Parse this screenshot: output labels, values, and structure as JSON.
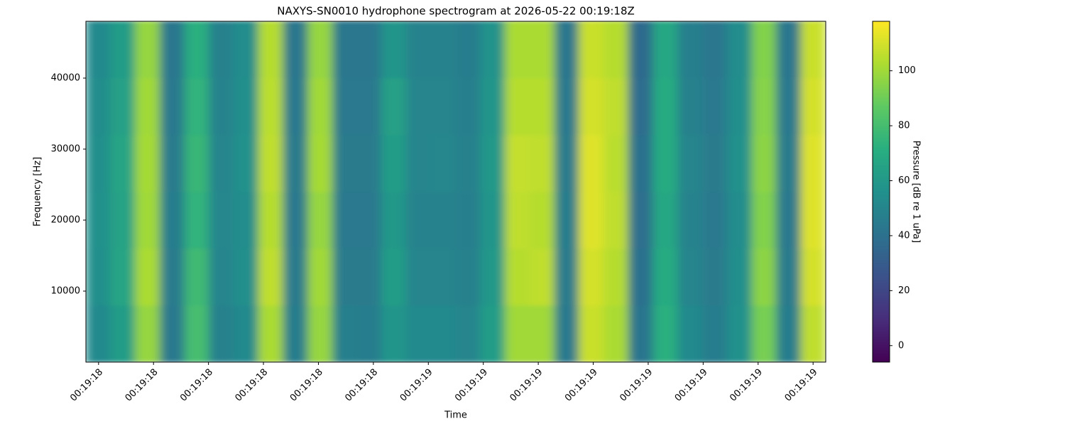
{
  "chart_data": {
    "type": "heatmap",
    "title": "NAXYS-SN0010 hydrophone spectrogram at 2026-05-22 00:19:18Z",
    "x_label": "Time",
    "y_label": "Frequency [Hz]",
    "colorbar_label": "Pressure [dB re 1 uPa]",
    "colormap": "viridis",
    "x_bins": [
      1158.377,
      1158.422,
      1158.467,
      1158.512,
      1158.557,
      1158.601,
      1158.646,
      1158.691,
      1158.736,
      1158.781,
      1158.826,
      1158.871,
      1158.915,
      1158.96,
      1159.005,
      1159.05,
      1159.095,
      1159.14,
      1159.185,
      1159.23,
      1159.274,
      1159.319,
      1159.364,
      1159.409,
      1159.454,
      1159.499,
      1159.544,
      1159.589,
      1159.633,
      1159.678,
      1159.723
    ],
    "y_bins": [
      0,
      8000,
      16000,
      24000,
      32000,
      40000,
      48000
    ],
    "values": [
      [
        52,
        62,
        98,
        44,
        80,
        48,
        52,
        102,
        46,
        98,
        47,
        46,
        58,
        52,
        52,
        50,
        62,
        100,
        100,
        44,
        108,
        102,
        42,
        72,
        52,
        46,
        56,
        92,
        46,
        106
      ],
      [
        55,
        66,
        102,
        45,
        78,
        50,
        55,
        106,
        45,
        100,
        45,
        45,
        62,
        50,
        50,
        48,
        60,
        104,
        106,
        45,
        110,
        104,
        40,
        70,
        50,
        45,
        55,
        96,
        45,
        110
      ],
      [
        56,
        65,
        100,
        46,
        74,
        51,
        54,
        104,
        44,
        98,
        44,
        44,
        60,
        49,
        49,
        47,
        58,
        106,
        104,
        46,
        112,
        106,
        39,
        68,
        49,
        44,
        54,
        94,
        44,
        112
      ],
      [
        55,
        66,
        101,
        45,
        76,
        50,
        56,
        106,
        45,
        101,
        45,
        45,
        62,
        50,
        51,
        48,
        60,
        107,
        106,
        45,
        112,
        105,
        40,
        70,
        50,
        45,
        56,
        96,
        45,
        112
      ],
      [
        54,
        64,
        100,
        44,
        74,
        49,
        55,
        105,
        44,
        100,
        44,
        44,
        64,
        50,
        50,
        47,
        58,
        104,
        104,
        44,
        110,
        106,
        38,
        70,
        48,
        44,
        55,
        95,
        44,
        110
      ],
      [
        52,
        62,
        98,
        43,
        72,
        48,
        54,
        104,
        43,
        98,
        43,
        43,
        58,
        49,
        49,
        46,
        57,
        102,
        102,
        43,
        108,
        104,
        37,
        68,
        47,
        43,
        54,
        94,
        43,
        108
      ]
    ],
    "xlim": [
      1158.377,
      1159.723
    ],
    "xticks": [
      {
        "value": 1158.4,
        "label": "00:19:18"
      },
      {
        "value": 1158.5,
        "label": "00:19:18"
      },
      {
        "value": 1158.6,
        "label": "00:19:18"
      },
      {
        "value": 1158.7,
        "label": "00:19:18"
      },
      {
        "value": 1158.8,
        "label": "00:19:18"
      },
      {
        "value": 1158.9,
        "label": "00:19:18"
      },
      {
        "value": 1159.0,
        "label": "00:19:19"
      },
      {
        "value": 1159.1,
        "label": "00:19:19"
      },
      {
        "value": 1159.2,
        "label": "00:19:19"
      },
      {
        "value": 1159.3,
        "label": "00:19:19"
      },
      {
        "value": 1159.4,
        "label": "00:19:19"
      },
      {
        "value": 1159.5,
        "label": "00:19:19"
      },
      {
        "value": 1159.6,
        "label": "00:19:19"
      },
      {
        "value": 1159.7,
        "label": "00:19:19"
      }
    ],
    "ylim": [
      0,
      48000
    ],
    "yticks": [
      10000,
      20000,
      30000,
      40000
    ],
    "clim": [
      -6,
      118
    ],
    "cticks": [
      0,
      20,
      40,
      60,
      80,
      100
    ]
  }
}
